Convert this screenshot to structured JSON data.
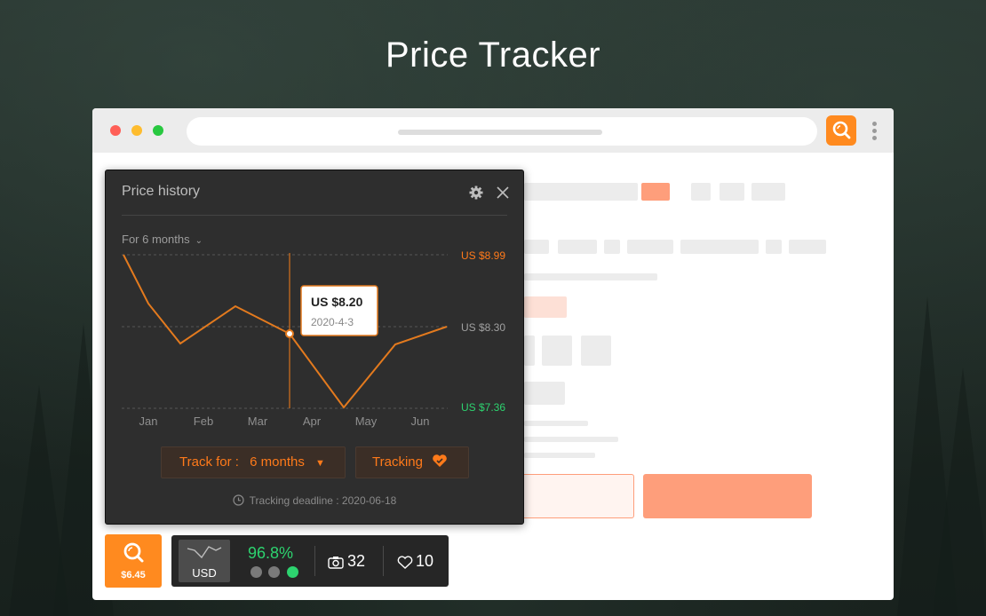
{
  "header": {
    "title": "Price Tracker"
  },
  "popup": {
    "title": "Price history",
    "period_label": "For 6 months",
    "months": [
      "Jan",
      "Feb",
      "Mar",
      "Apr",
      "May",
      "Jun"
    ],
    "price_high": "US $8.99",
    "price_mid": "US $8.30",
    "price_low": "US $7.36",
    "tooltip": {
      "price": "US $8.20",
      "date": "2020-4-3"
    },
    "track_for_prefix": "Track for :",
    "track_for_value": "6 months",
    "tracking_label": "Tracking",
    "deadline": "Tracking deadline : 2020-06-18",
    "colors": {
      "accent": "#ff7a1a",
      "high": "#ff7a1a",
      "low": "#2dd36f"
    }
  },
  "chart_data": {
    "type": "line",
    "title": "Price history",
    "x": [
      "Jan",
      "Feb",
      "Mar",
      "Apr",
      "May",
      "Jun"
    ],
    "points": [
      {
        "x": "Jan (start)",
        "y": 8.99
      },
      {
        "x": "Jan",
        "y": 8.6
      },
      {
        "x": "Jan-Feb",
        "y": 8.18
      },
      {
        "x": "Mar",
        "y": 8.45
      },
      {
        "x": "Apr",
        "y": 8.2
      },
      {
        "x": "May",
        "y": 7.36
      },
      {
        "x": "Jun",
        "y": 8.18
      },
      {
        "x": "Jun (end)",
        "y": 8.3
      }
    ],
    "ylim": [
      7.36,
      8.99
    ],
    "reference_lines": [
      8.99,
      8.3,
      7.36
    ],
    "highlight": {
      "x": "Apr",
      "y": 8.2,
      "label": "US $8.20",
      "date": "2020-4-3"
    }
  },
  "widgets": {
    "current_price": "$6.45",
    "currency": "USD",
    "rating_percent": "96.8%",
    "photos_count": "32",
    "likes_count": "10"
  },
  "browser": {
    "extension_icon": "search-icon"
  }
}
